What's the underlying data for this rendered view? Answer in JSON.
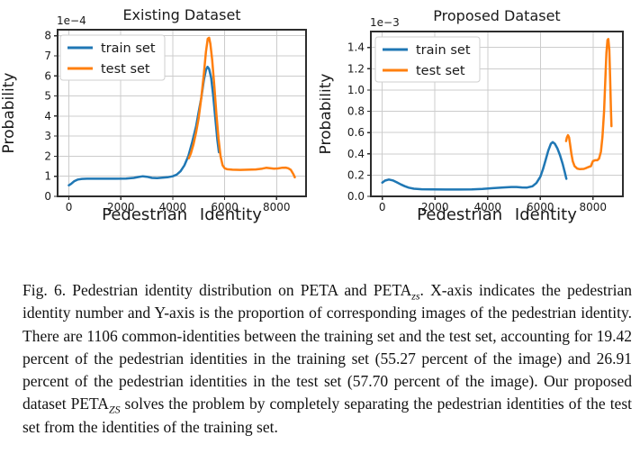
{
  "figure": {
    "caption": {
      "runs": [
        {
          "text": "Fig. 6.  Pedestrian identity distribution on PETA and PETA",
          "sub": false
        },
        {
          "text": "zs",
          "sub": true
        },
        {
          "text": ". X-axis indicates the pedestrian identity number and Y-axis is the proportion of corresponding images of the pedestrian identity. There are 1106 common-identities between the training set and the test set, accounting for 19.42 percent of the pedestrian identities in the training set (55.27 percent of the image) and 26.91 percent of the pedestrian identities in the test set (57.70 percent of the image). Our proposed dataset PETA",
          "sub": false
        },
        {
          "text": "ZS",
          "sub": true
        },
        {
          "text": " solves the problem by completely separating the pedestrian identities of the test set from the identities of the training set.",
          "sub": false
        }
      ]
    }
  },
  "style_colors": {
    "grid": "#cccccc",
    "spine": "#2d2d2d",
    "legend_border": "#cfcfcf",
    "train": "#1f77b4",
    "test": "#ff7f0e"
  },
  "chart_data": [
    {
      "type": "line",
      "title": "Existing Dataset",
      "xlabel": "Pedestrian Identity",
      "ylabel": "Probability",
      "y_offset_label": "1e−4",
      "xlim": [
        -435,
        9135
      ],
      "ylim": [
        0,
        8.3
      ],
      "xticks": [
        0,
        2000,
        4000,
        6000,
        8000
      ],
      "xtick_labels": [
        "0",
        "2000",
        "4000",
        "6000",
        "8000"
      ],
      "yticks": [
        0,
        1,
        2,
        3,
        4,
        5,
        6,
        7,
        8
      ],
      "ytick_labels": [
        "0",
        "1",
        "2",
        "3",
        "4",
        "5",
        "6",
        "7",
        "8"
      ],
      "grid": true,
      "legend_position": "upper left",
      "series": [
        {
          "name": "train set",
          "color": "#1f77b4",
          "points": [
            [
              0,
              0.55
            ],
            [
              80,
              0.62
            ],
            [
              200,
              0.75
            ],
            [
              350,
              0.84
            ],
            [
              500,
              0.87
            ],
            [
              700,
              0.88
            ],
            [
              1000,
              0.88
            ],
            [
              1400,
              0.88
            ],
            [
              1800,
              0.88
            ],
            [
              2200,
              0.89
            ],
            [
              2500,
              0.92
            ],
            [
              2700,
              0.97
            ],
            [
              2850,
              1.0
            ],
            [
              3000,
              0.98
            ],
            [
              3200,
              0.92
            ],
            [
              3400,
              0.91
            ],
            [
              3600,
              0.93
            ],
            [
              3800,
              0.95
            ],
            [
              4000,
              1.0
            ],
            [
              4150,
              1.08
            ],
            [
              4300,
              1.25
            ],
            [
              4450,
              1.55
            ],
            [
              4600,
              2.0
            ],
            [
              4750,
              2.7
            ],
            [
              4900,
              3.5
            ],
            [
              5000,
              4.2
            ],
            [
              5100,
              4.9
            ],
            [
              5200,
              5.8
            ],
            [
              5280,
              6.3
            ],
            [
              5340,
              6.45
            ],
            [
              5400,
              6.35
            ],
            [
              5480,
              5.9
            ],
            [
              5560,
              5.0
            ],
            [
              5640,
              3.9
            ],
            [
              5720,
              2.8
            ],
            [
              5780,
              2.2
            ]
          ]
        },
        {
          "name": "test set",
          "color": "#ff7f0e",
          "points": [
            [
              4620,
              1.9
            ],
            [
              4700,
              2.15
            ],
            [
              4800,
              2.6
            ],
            [
              4900,
              3.2
            ],
            [
              5000,
              3.9
            ],
            [
              5100,
              4.9
            ],
            [
              5200,
              6.1
            ],
            [
              5280,
              7.2
            ],
            [
              5350,
              7.85
            ],
            [
              5400,
              7.9
            ],
            [
              5450,
              7.6
            ],
            [
              5520,
              6.8
            ],
            [
              5600,
              5.5
            ],
            [
              5680,
              4.1
            ],
            [
              5760,
              2.9
            ],
            [
              5840,
              2.0
            ],
            [
              5920,
              1.55
            ],
            [
              6000,
              1.4
            ],
            [
              6100,
              1.35
            ],
            [
              6300,
              1.33
            ],
            [
              6600,
              1.32
            ],
            [
              6900,
              1.33
            ],
            [
              7200,
              1.34
            ],
            [
              7450,
              1.38
            ],
            [
              7600,
              1.42
            ],
            [
              7750,
              1.4
            ],
            [
              7900,
              1.38
            ],
            [
              8050,
              1.39
            ],
            [
              8200,
              1.42
            ],
            [
              8350,
              1.43
            ],
            [
              8450,
              1.4
            ],
            [
              8550,
              1.32
            ],
            [
              8650,
              1.1
            ],
            [
              8700,
              0.95
            ]
          ]
        }
      ]
    },
    {
      "type": "line",
      "title": "Proposed Dataset",
      "xlabel": "Pedestrian Identity",
      "ylabel": "Probability",
      "y_offset_label": "1e−3",
      "xlim": [
        -435,
        9135
      ],
      "ylim": [
        0,
        1.55
      ],
      "xticks": [
        0,
        2000,
        4000,
        6000,
        8000
      ],
      "xtick_labels": [
        "0",
        "2000",
        "4000",
        "6000",
        "8000"
      ],
      "yticks": [
        0,
        0.2,
        0.4,
        0.6,
        0.8,
        1.0,
        1.2,
        1.4
      ],
      "ytick_labels": [
        "0.0",
        "0.2",
        "0.4",
        "0.6",
        "0.8",
        "1.0",
        "1.2",
        "1.4"
      ],
      "grid": true,
      "legend_position": "upper left",
      "series": [
        {
          "name": "train set",
          "color": "#1f77b4",
          "points": [
            [
              0,
              0.13
            ],
            [
              100,
              0.148
            ],
            [
              250,
              0.158
            ],
            [
              400,
              0.15
            ],
            [
              550,
              0.132
            ],
            [
              700,
              0.113
            ],
            [
              850,
              0.096
            ],
            [
              1000,
              0.082
            ],
            [
              1200,
              0.072
            ],
            [
              1500,
              0.067
            ],
            [
              1900,
              0.065
            ],
            [
              2400,
              0.064
            ],
            [
              2900,
              0.064
            ],
            [
              3400,
              0.066
            ],
            [
              3800,
              0.07
            ],
            [
              4200,
              0.077
            ],
            [
              4600,
              0.084
            ],
            [
              4900,
              0.088
            ],
            [
              5100,
              0.088
            ],
            [
              5300,
              0.084
            ],
            [
              5500,
              0.083
            ],
            [
              5700,
              0.095
            ],
            [
              5850,
              0.125
            ],
            [
              6000,
              0.185
            ],
            [
              6100,
              0.255
            ],
            [
              6200,
              0.34
            ],
            [
              6300,
              0.43
            ],
            [
              6400,
              0.495
            ],
            [
              6470,
              0.51
            ],
            [
              6550,
              0.495
            ],
            [
              6650,
              0.45
            ],
            [
              6750,
              0.385
            ],
            [
              6850,
              0.305
            ],
            [
              6930,
              0.225
            ],
            [
              6990,
              0.165
            ]
          ]
        },
        {
          "name": "test set",
          "color": "#ff7f0e",
          "points": [
            [
              6980,
              0.52
            ],
            [
              7010,
              0.555
            ],
            [
              7050,
              0.575
            ],
            [
              7090,
              0.555
            ],
            [
              7130,
              0.49
            ],
            [
              7180,
              0.4
            ],
            [
              7230,
              0.33
            ],
            [
              7300,
              0.285
            ],
            [
              7400,
              0.262
            ],
            [
              7500,
              0.256
            ],
            [
              7650,
              0.258
            ],
            [
              7750,
              0.268
            ],
            [
              7850,
              0.278
            ],
            [
              7920,
              0.285
            ],
            [
              7960,
              0.31
            ],
            [
              8000,
              0.332
            ],
            [
              8080,
              0.34
            ],
            [
              8160,
              0.34
            ],
            [
              8230,
              0.355
            ],
            [
              8300,
              0.42
            ],
            [
              8360,
              0.56
            ],
            [
              8420,
              0.8
            ],
            [
              8470,
              1.1
            ],
            [
              8510,
              1.35
            ],
            [
              8550,
              1.47
            ],
            [
              8580,
              1.48
            ],
            [
              8620,
              1.38
            ],
            [
              8650,
              1.12
            ],
            [
              8680,
              0.82
            ],
            [
              8700,
              0.66
            ]
          ]
        }
      ]
    }
  ]
}
